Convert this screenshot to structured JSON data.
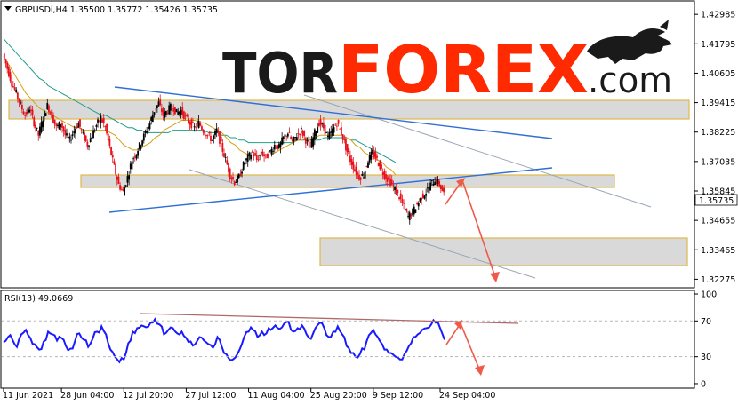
{
  "colors": {
    "candle_up": "#000000",
    "candle_down": "#e8111b",
    "ma_fast": "#d4a017",
    "ma_slow": "#1f9e8a",
    "trendline": "#2f6fd6",
    "channel": "#9aa6b4",
    "zone_fill": "#d9d9d9",
    "zone_border": "#e0b94c",
    "arrow": "#ef5a4b",
    "rsi_line": "#1a1aff",
    "rsi_trend": "#b06a6a",
    "logo_dark": "#1a1a1a",
    "logo_red": "#ff2a00"
  },
  "logo": {
    "part1": "TOR",
    "part2": "FOREX",
    "part3": ".com",
    "icon": "bull-icon"
  },
  "chart_data": [
    {
      "type": "candlestick",
      "title": "GBPUSDi,H4  1.35500 1.35772 1.35426 1.35735",
      "symbol": "GBPUSDi,H4",
      "ohlc": [
        1.355,
        1.35772,
        1.35426,
        1.35735
      ],
      "current_price": "1.35735",
      "ylim": [
        1.3193,
        1.4353
      ],
      "ytick_values": [
        1.42985,
        1.41795,
        1.40605,
        1.39415,
        1.38225,
        1.37035,
        1.35845,
        1.34655,
        1.33465,
        1.32275
      ],
      "ytick_labels": [
        "1.42985",
        "1.41795",
        "1.40605",
        "1.39415",
        "1.38225",
        "1.37035",
        "1.35845",
        "1.34655",
        "1.33465",
        "1.32275"
      ],
      "xtick_index": [
        0,
        13,
        27,
        41,
        55,
        69,
        83,
        98
      ],
      "xtick_labels": [
        "11 Jun 2021",
        "28 Jun 04:00",
        "12 Jul 20:00",
        "27 Jul 12:00",
        "11 Aug 04:00",
        "25 Aug 20:00",
        "9 Sep 12:00",
        "24 Sep 04:00"
      ],
      "close_series": [
        1.414,
        1.408,
        1.402,
        1.398,
        1.393,
        1.389,
        1.392,
        1.386,
        1.381,
        1.388,
        1.393,
        1.389,
        1.384,
        1.386,
        1.381,
        1.379,
        1.383,
        1.386,
        1.381,
        1.377,
        1.381,
        1.385,
        1.388,
        1.384,
        1.376,
        1.368,
        1.361,
        1.358,
        1.364,
        1.371,
        1.374,
        1.378,
        1.382,
        1.386,
        1.391,
        1.394,
        1.389,
        1.391,
        1.393,
        1.39,
        1.391,
        1.388,
        1.386,
        1.384,
        1.386,
        1.383,
        1.381,
        1.379,
        1.383,
        1.377,
        1.371,
        1.365,
        1.362,
        1.364,
        1.369,
        1.372,
        1.374,
        1.371,
        1.374,
        1.372,
        1.374,
        1.377,
        1.376,
        1.38,
        1.382,
        1.378,
        1.381,
        1.383,
        1.379,
        1.376,
        1.382,
        1.386,
        1.384,
        1.38,
        1.383,
        1.386,
        1.382,
        1.376,
        1.371,
        1.367,
        1.364,
        1.365,
        1.371,
        1.374,
        1.371,
        1.367,
        1.364,
        1.362,
        1.359,
        1.356,
        1.352,
        1.348,
        1.35,
        1.353,
        1.356,
        1.358,
        1.361,
        1.363,
        1.361,
        1.3574
      ],
      "ma_fast": [
        1.413,
        1.41,
        1.407,
        1.404,
        1.401,
        1.398,
        1.396,
        1.394,
        1.392,
        1.391,
        1.39,
        1.389,
        1.388,
        1.387,
        1.386,
        1.385,
        1.384,
        1.384,
        1.383,
        1.383,
        1.383,
        1.383,
        1.383,
        1.383,
        1.382,
        1.381,
        1.379,
        1.377,
        1.376,
        1.375,
        1.375,
        1.376,
        1.377,
        1.378,
        1.38,
        1.381,
        1.383,
        1.384,
        1.385,
        1.386,
        1.387,
        1.387,
        1.387,
        1.387,
        1.386,
        1.386,
        1.385,
        1.384,
        1.383,
        1.382,
        1.38,
        1.378,
        1.377,
        1.375,
        1.374,
        1.373,
        1.373,
        1.373,
        1.373,
        1.373,
        1.373,
        1.374,
        1.375,
        1.376,
        1.377,
        1.378,
        1.379,
        1.379,
        1.38,
        1.38,
        1.38,
        1.381,
        1.381,
        1.381,
        1.381,
        1.381,
        1.381,
        1.38,
        1.379,
        1.377,
        1.376,
        1.374,
        1.373,
        1.372,
        1.371,
        1.37,
        1.368,
        1.367,
        1.365
      ],
      "ma_slow": [
        1.42,
        1.418,
        1.416,
        1.414,
        1.412,
        1.41,
        1.408,
        1.406,
        1.404,
        1.403,
        1.401,
        1.4,
        1.399,
        1.398,
        1.397,
        1.396,
        1.395,
        1.394,
        1.393,
        1.392,
        1.391,
        1.39,
        1.389,
        1.389,
        1.388,
        1.387,
        1.386,
        1.385,
        1.384,
        1.384,
        1.383,
        1.383,
        1.382,
        1.382,
        1.382,
        1.382,
        1.382,
        1.382,
        1.383,
        1.383,
        1.383,
        1.383,
        1.383,
        1.383,
        1.383,
        1.383,
        1.382,
        1.382,
        1.382,
        1.381,
        1.381,
        1.38,
        1.38,
        1.379,
        1.379,
        1.378,
        1.378,
        1.378,
        1.378,
        1.378,
        1.378,
        1.378,
        1.378,
        1.378,
        1.378,
        1.378,
        1.379,
        1.379,
        1.379,
        1.379,
        1.379,
        1.379,
        1.38,
        1.38,
        1.38,
        1.38,
        1.38,
        1.38,
        1.379,
        1.379,
        1.378,
        1.377,
        1.376,
        1.375,
        1.374,
        1.373,
        1.372,
        1.371,
        1.37
      ]
    },
    {
      "type": "line",
      "title": "RSI(13) 49.0669",
      "ylim": [
        -4,
        103
      ],
      "ytick_labels": [
        "100",
        "70",
        "30",
        "0"
      ],
      "ytick_values": [
        100,
        70,
        30,
        0
      ],
      "levels": [
        70,
        30
      ],
      "values": [
        46,
        52,
        49,
        41,
        55,
        60,
        51,
        44,
        38,
        47,
        58,
        55,
        48,
        51,
        42,
        39,
        47,
        56,
        49,
        41,
        50,
        58,
        64,
        55,
        38,
        30,
        24,
        27,
        45,
        58,
        62,
        65,
        63,
        68,
        72,
        66,
        55,
        60,
        62,
        56,
        58,
        51,
        47,
        44,
        52,
        48,
        44,
        40,
        52,
        41,
        33,
        26,
        29,
        38,
        52,
        58,
        60,
        52,
        58,
        56,
        60,
        65,
        61,
        67,
        69,
        58,
        62,
        65,
        55,
        50,
        62,
        68,
        62,
        52,
        58,
        64,
        55,
        42,
        34,
        30,
        33,
        38,
        54,
        60,
        52,
        44,
        38,
        34,
        30,
        27,
        33,
        42,
        52,
        55,
        60,
        62,
        66,
        68,
        62,
        49
      ]
    }
  ]
}
